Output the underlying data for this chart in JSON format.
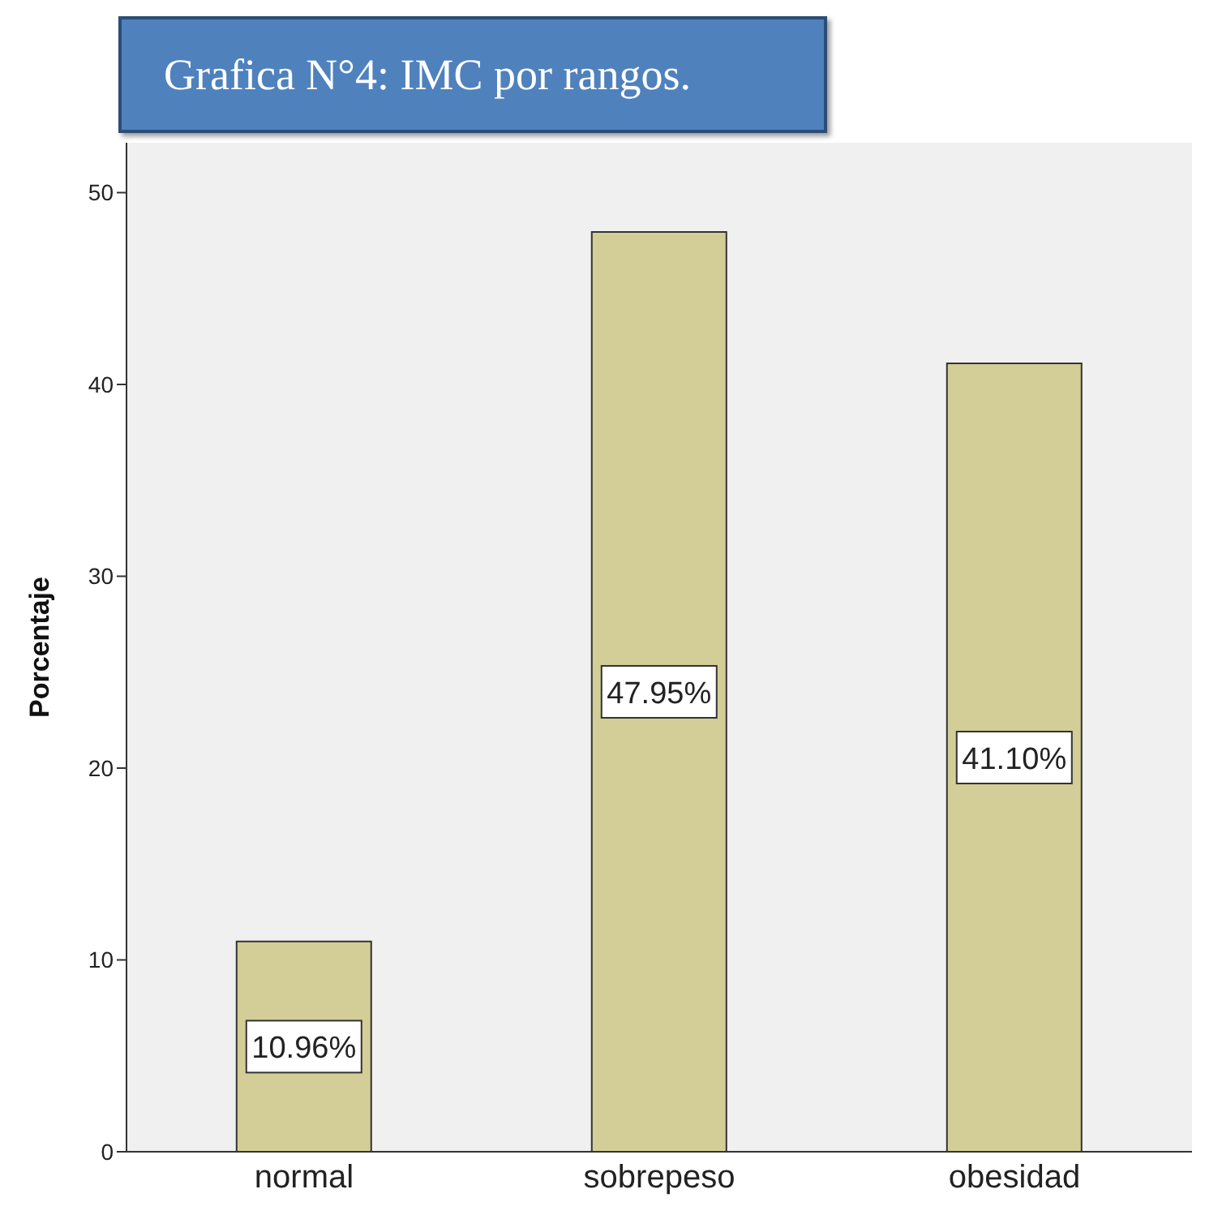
{
  "chart_data": {
    "type": "bar",
    "title": "Grafica N°4: IMC por rangos.",
    "ylabel": "Porcentaje",
    "categories": [
      "normal",
      "sobrepeso",
      "obesidad"
    ],
    "values": [
      10.96,
      47.95,
      41.1
    ],
    "value_labels": [
      "10.96%",
      "47.95%",
      "41.10%"
    ],
    "color": "#d3ce97",
    "ylim": [
      0,
      52.6
    ],
    "yticks": [
      0,
      10,
      20,
      30,
      40,
      50
    ]
  }
}
